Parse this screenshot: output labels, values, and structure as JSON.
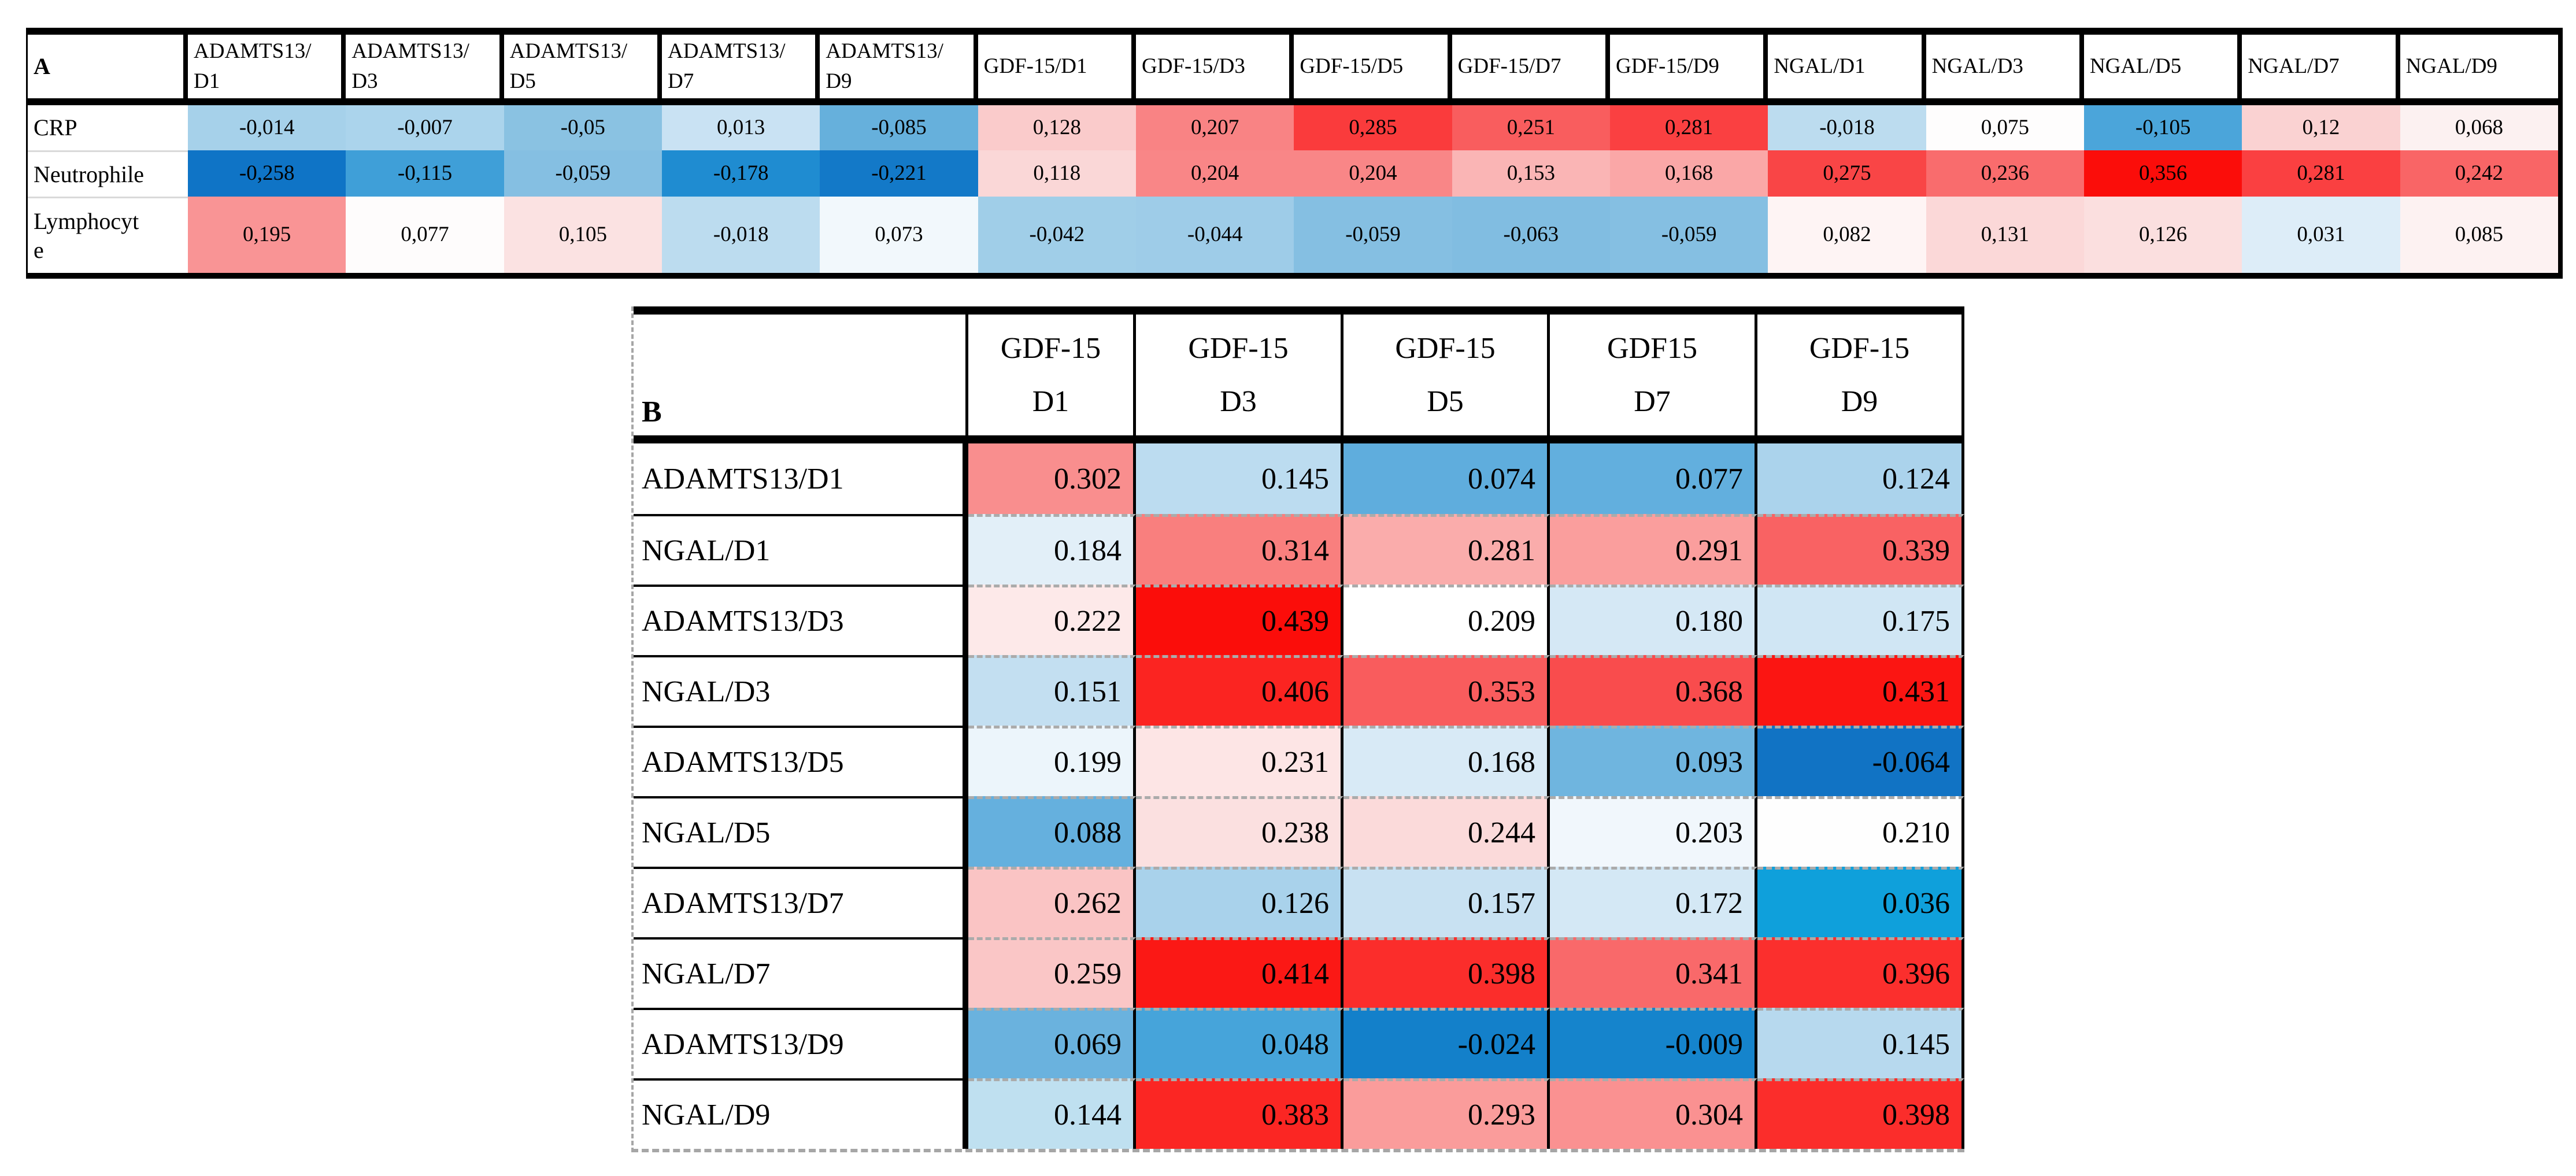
{
  "figure": {
    "background": "#ffffff",
    "panels": [
      "A",
      "B"
    ],
    "colorscale_hint": {
      "negative_color": "#0F74C6",
      "neutral_color": "#FFFFFF",
      "positive_color": "#FB0D0A",
      "legend_shown": false
    }
  },
  "chart_data": [
    {
      "panel": "A",
      "type": "heatmap",
      "decimal_separator": ",",
      "col_labels": [
        "ADAMTS13/D1",
        "ADAMTS13/D3",
        "ADAMTS13/D5",
        "ADAMTS13/D7",
        "ADAMTS13/D9",
        "GDF-15/D1",
        "GDF-15/D3",
        "GDF-15/D5",
        "GDF-15/D7",
        "GDF-15/D9",
        "NGAL/D1",
        "NGAL/D3",
        "NGAL/D5",
        "NGAL/D7",
        "NGAL/D9"
      ],
      "col_label_lines": [
        [
          "ADAMTS13/",
          "D1"
        ],
        [
          "ADAMTS13/",
          "D3"
        ],
        [
          "ADAMTS13/",
          "D5"
        ],
        [
          "ADAMTS13/",
          "D7"
        ],
        [
          "ADAMTS13/",
          "D9"
        ],
        [
          "GDF-15/D1"
        ],
        [
          "GDF-15/D3"
        ],
        [
          "GDF-15/D5"
        ],
        [
          "GDF-15/D7"
        ],
        [
          "GDF-15/D9"
        ],
        [
          "NGAL/D1"
        ],
        [
          "NGAL/D3"
        ],
        [
          "NGAL/D5"
        ],
        [
          "NGAL/D7"
        ],
        [
          "NGAL/D9"
        ]
      ],
      "row_labels": [
        "CRP",
        "Neutrophile",
        "Lymphocyte"
      ],
      "row_label_lines": [
        [
          "CRP"
        ],
        [
          "Neutrophile"
        ],
        [
          "Lymphocyt",
          "e"
        ]
      ],
      "values": [
        [
          -0.014,
          -0.007,
          -0.05,
          0.013,
          -0.085,
          0.128,
          0.207,
          0.285,
          0.251,
          0.281,
          -0.018,
          0.075,
          -0.105,
          0.12,
          0.068
        ],
        [
          -0.258,
          -0.115,
          -0.059,
          -0.178,
          -0.221,
          0.118,
          0.204,
          0.204,
          0.153,
          0.168,
          0.275,
          0.236,
          0.356,
          0.281,
          0.242
        ],
        [
          0.195,
          0.077,
          0.105,
          -0.018,
          0.073,
          -0.042,
          -0.044,
          -0.059,
          -0.063,
          -0.059,
          0.082,
          0.131,
          0.126,
          0.031,
          0.085
        ]
      ],
      "display": [
        [
          "-0,014",
          "-0,007",
          "-0,05",
          "0,013",
          "-0,085",
          "0,128",
          "0,207",
          "0,285",
          "0,251",
          "0,281",
          "-0,018",
          "0,075",
          "-0,105",
          "0,12",
          "0,068"
        ],
        [
          "-0,258",
          "-0,115",
          "-0,059",
          "-0,178",
          "-0,221",
          "0,118",
          "0,204",
          "0,204",
          "0,153",
          "0,168",
          "0,275",
          "0,236",
          "0,356",
          "0,281",
          "0,242"
        ],
        [
          "0,195",
          "0,077",
          "0,105",
          "-0,018",
          "0,073",
          "-0,042",
          "-0,044",
          "-0,059",
          "-0,063",
          "-0,059",
          "0,082",
          "0,131",
          "0,126",
          "0,031",
          "0,085"
        ]
      ],
      "cell_colors": [
        [
          "#A6D1EA",
          "#ABD4EC",
          "#8AC2E2",
          "#C9E2F3",
          "#66B0DC",
          "#FACBCB",
          "#F98384",
          "#FA3B3C",
          "#F95D5E",
          "#FA4041",
          "#BCDCEF",
          "#FEFDFD",
          "#4BA5DA",
          "#FAD2D2",
          "#FCF1F1"
        ],
        [
          "#0F74C6",
          "#3F9FD8",
          "#85BFE2",
          "#1F8CD1",
          "#1379C8",
          "#FAD7D7",
          "#F98687",
          "#F98687",
          "#FAB5B5",
          "#FAA7A7",
          "#F94546",
          "#F96C6D",
          "#FB0D0A",
          "#FA4041",
          "#F96566"
        ],
        [
          "#F99495",
          "#FEFCFC",
          "#FBE2E2",
          "#BCDCEF",
          "#F2F8FC",
          "#A0CEE8",
          "#9ECCE8",
          "#85BFE2",
          "#81BDE1",
          "#85BFE2",
          "#FEF4F4",
          "#FBD8D8",
          "#FBDFDF",
          "#DDEDF8",
          "#FDF2F2"
        ]
      ],
      "value_range": [
        -0.258,
        0.356
      ]
    },
    {
      "panel": "B",
      "type": "heatmap",
      "decimal_separator": ".",
      "col_labels": [
        "GDF-15 D1",
        "GDF-15 D3",
        "GDF-15 D5",
        "GDF15 D7",
        "GDF-15 D9"
      ],
      "col_label_lines": [
        [
          "GDF-15",
          "D1"
        ],
        [
          "GDF-15",
          "D3"
        ],
        [
          "GDF-15",
          "D5"
        ],
        [
          "GDF15",
          "D7"
        ],
        [
          "GDF-15",
          "D9"
        ]
      ],
      "row_labels": [
        "ADAMTS13/D1",
        "NGAL/D1",
        "ADAMTS13/D3",
        "NGAL/D3",
        "ADAMTS13/D5",
        "NGAL/D5",
        "ADAMTS13/D7",
        "NGAL/D7",
        "ADAMTS13/D9",
        "NGAL/D9"
      ],
      "row_label_lines": [
        [
          "ADAMTS13/D1"
        ],
        [
          "NGAL/D1"
        ],
        [
          "ADAMTS13/D3"
        ],
        [
          "NGAL/D3"
        ],
        [
          "ADAMTS13/D5"
        ],
        [
          "NGAL/D5"
        ],
        [
          "ADAMTS13/D7"
        ],
        [
          "NGAL/D7"
        ],
        [
          "ADAMTS13/D9"
        ],
        [
          "NGAL/D9"
        ]
      ],
      "values": [
        [
          0.302,
          0.145,
          0.074,
          0.077,
          0.124
        ],
        [
          0.184,
          0.314,
          0.281,
          0.291,
          0.339
        ],
        [
          0.222,
          0.439,
          0.209,
          0.18,
          0.175
        ],
        [
          0.151,
          0.406,
          0.353,
          0.368,
          0.431
        ],
        [
          0.199,
          0.231,
          0.168,
          0.093,
          -0.064
        ],
        [
          0.088,
          0.238,
          0.244,
          0.203,
          0.21
        ],
        [
          0.262,
          0.126,
          0.157,
          0.172,
          0.036
        ],
        [
          0.259,
          0.414,
          0.398,
          0.341,
          0.396
        ],
        [
          0.069,
          0.048,
          -0.024,
          -0.009,
          0.145
        ],
        [
          0.144,
          0.383,
          0.293,
          0.304,
          0.398
        ]
      ],
      "display": [
        [
          "0.302",
          "0.145",
          "0.074",
          "0.077",
          "0.124"
        ],
        [
          "0.184",
          "0.314",
          "0.281",
          "0.291",
          "0.339"
        ],
        [
          "0.222",
          "0.439",
          "0.209",
          "0.180",
          "0.175"
        ],
        [
          "0.151",
          "0.406",
          "0.353",
          "0.368",
          "0.431"
        ],
        [
          "0.199",
          "0.231",
          "0.168",
          "0.093",
          "-0.064"
        ],
        [
          "0.088",
          "0.238",
          "0.244",
          "0.203",
          "0.210"
        ],
        [
          "0.262",
          "0.126",
          "0.157",
          "0.172",
          "0.036"
        ],
        [
          "0.259",
          "0.414",
          "0.398",
          "0.341",
          "0.396"
        ],
        [
          "0.069",
          "0.048",
          "-0.024",
          "-0.009",
          "0.145"
        ],
        [
          "0.144",
          "0.383",
          "0.293",
          "0.304",
          "0.398"
        ]
      ],
      "cell_colors": [
        [
          "#F98E8E",
          "#BCDCF0",
          "#5FADDD",
          "#62AFDE",
          "#ABD3EC"
        ],
        [
          "#E2EFF8",
          "#F97F7E",
          "#FAACAB",
          "#FA9E9D",
          "#F96263"
        ],
        [
          "#FDE9E9",
          "#FB0D0A",
          "#FFFFFF",
          "#D5E8F5",
          "#D0E6F4"
        ],
        [
          "#C3DFF1",
          "#FB2421",
          "#F95C5D",
          "#F94C4D",
          "#FB1512"
        ],
        [
          "#ECF5FB",
          "#FDE5E5",
          "#D8EAF6",
          "#6FB5DF",
          "#1173C4"
        ],
        [
          "#65B0DE",
          "#FBE0E0",
          "#FBDADA",
          "#F1F7FC",
          "#FEFEFE"
        ],
        [
          "#FAC4C4",
          "#A9D2EB",
          "#C8E1F2",
          "#D4E8F5",
          "#0FA0DB"
        ],
        [
          "#FAC6C6",
          "#FB1815",
          "#FB2D2B",
          "#F9696A",
          "#FB2F2D"
        ],
        [
          "#6AB2DE",
          "#46A4DA",
          "#1380CA",
          "#1584CC",
          "#B7D9EE"
        ],
        [
          "#BFE0F0",
          "#FB2623",
          "#FA9C9B",
          "#FA9191",
          "#FB2D2B"
        ]
      ],
      "value_range": [
        -0.064,
        0.439
      ]
    }
  ]
}
